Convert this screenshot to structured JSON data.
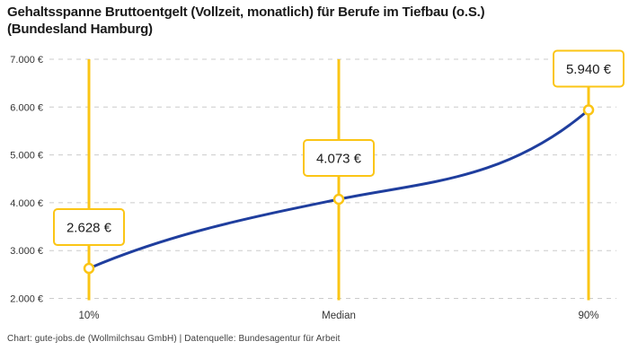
{
  "title": "Gehaltsspanne Bruttoentgelt (Vollzeit, monatlich) für Berufe im Tiefbau (o.S.) (Bundesland Hamburg)",
  "footer": "Chart: gute-jobs.de (Wollmilchsau GmbH) | Datenquelle: Bundesagentur für Arbeit",
  "colors": {
    "accent_yellow": "#FBC515",
    "line_blue": "#1F3E9E",
    "grid": "#CBCBCB",
    "text_dark": "#1A1A1A",
    "tick_text": "#333333"
  },
  "chart_data": {
    "type": "line",
    "categories": [
      "10%",
      "Median",
      "90%"
    ],
    "values": [
      2628,
      4073,
      5940
    ],
    "point_labels": [
      "2.628 €",
      "4.073 €",
      "5.940 €"
    ],
    "title": "Gehaltsspanne Bruttoentgelt (Vollzeit, monatlich) für Berufe im Tiefbau (o.S.) (Bundesland Hamburg)",
    "xlabel": "",
    "ylabel": "",
    "ylim": [
      2000,
      7000
    ],
    "yticks": [
      2000,
      3000,
      4000,
      5000,
      6000,
      7000
    ],
    "ytick_labels": [
      "2.000 €",
      "3.000 €",
      "4.000 €",
      "5.000 €",
      "6.000 €",
      "7.000 €"
    ],
    "grid": true,
    "grid_style": "dashed",
    "legend": false,
    "annotations": "each percentile marked with vertical highlight line, open circle marker and framed value label"
  }
}
